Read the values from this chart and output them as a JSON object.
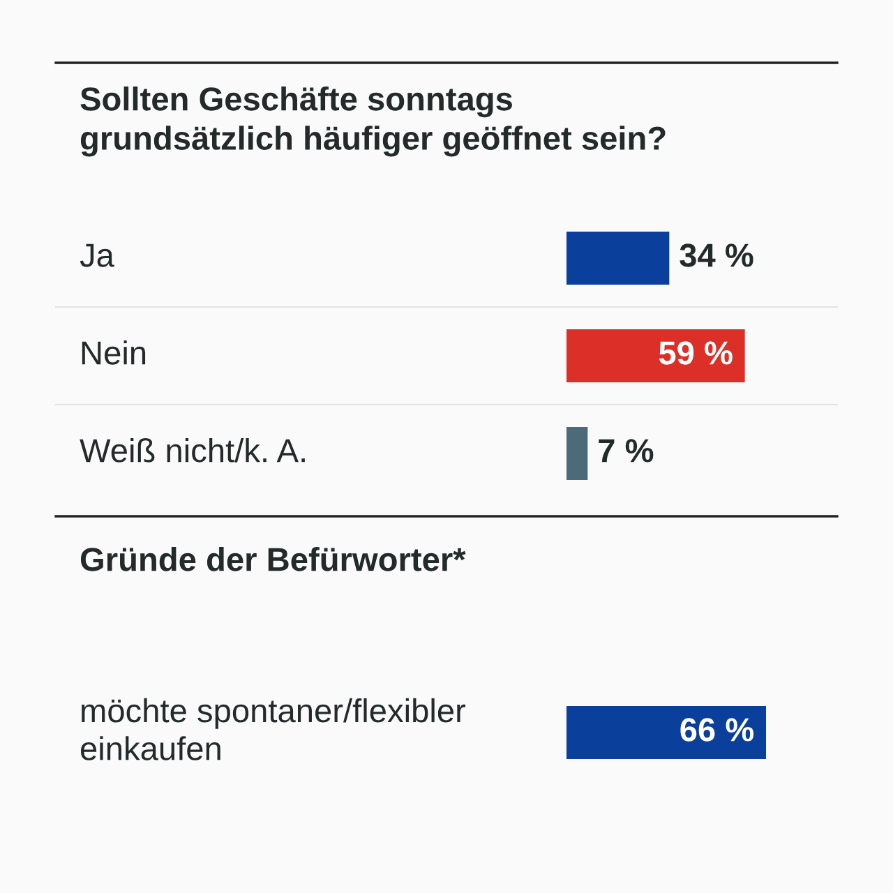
{
  "chart_data": [
    {
      "type": "bar",
      "orientation": "horizontal",
      "title": "Sollten Geschäfte sonntags grundsätzlich häufiger geöffnet sein?",
      "categories": [
        "Ja",
        "Nein",
        "Weiß nicht/k. A."
      ],
      "values": [
        34,
        59,
        7
      ],
      "colors": [
        "#0b3f9c",
        "#dc2f28",
        "#4d6a7b"
      ],
      "value_labels": [
        "34 %",
        "59 %",
        "7 %"
      ]
    },
    {
      "type": "bar",
      "orientation": "horizontal",
      "title": "Gründe der Befürworter*",
      "categories": [
        "möchte spontaner/flexibler einkaufen"
      ],
      "values": [
        66
      ],
      "colors": [
        "#0b3f9c"
      ],
      "value_labels": [
        "66 %"
      ]
    }
  ]
}
